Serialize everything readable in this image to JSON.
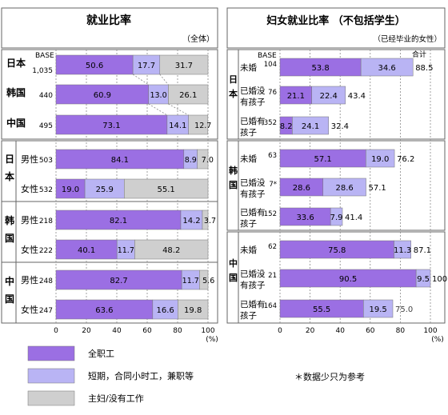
{
  "colors": {
    "full_time": "#9b6fe3",
    "part_time": "#b9b4f4",
    "none": "#cfcfcf",
    "panel_border": "#666666",
    "grid": "#8a8a8a"
  },
  "left_panel": {
    "title": "就业比率",
    "scope_note": "（全体）",
    "base_label": "BASE",
    "axis_ticks": [
      "0",
      "20",
      "40",
      "60",
      "80",
      "100"
    ],
    "unit": "(%)"
  },
  "right_panel": {
    "title": "妇女就业比率 （不包括学生）",
    "scope_note": "（已经毕业的女性）",
    "base_label": "BASE",
    "total_label": "合计",
    "axis_ticks": [
      "0",
      "20",
      "40",
      "60",
      "80",
      "100"
    ],
    "unit": "(%)"
  },
  "legend": [
    {
      "key": "full_time",
      "label": "全职工"
    },
    {
      "key": "part_time",
      "label": "短期，合同小时工，兼职等"
    },
    {
      "key": "none",
      "label": "主妇/没有工作"
    }
  ],
  "footnote": "＊数据少只为参考",
  "chart_data": [
    {
      "type": "bar",
      "stacked": true,
      "orientation": "horizontal",
      "title": "就业比率",
      "subtitle": "（全体）",
      "xlim": [
        0,
        100
      ],
      "xunit": "(%)",
      "series_names": [
        "全职工",
        "短期，合同小时工，兼职等",
        "主妇/没有工作"
      ],
      "rows": [
        {
          "group": "日本",
          "sub": "",
          "base": "1,035",
          "values": [
            50.6,
            17.7,
            31.7
          ]
        },
        {
          "group": "韩国",
          "sub": "",
          "base": "440",
          "values": [
            60.9,
            13.0,
            26.1
          ]
        },
        {
          "group": "中国",
          "sub": "",
          "base": "495",
          "values": [
            73.1,
            14.1,
            12.7
          ]
        },
        {
          "group": "日本",
          "sub": "男性",
          "base": "503",
          "values": [
            84.1,
            8.9,
            7.0
          ]
        },
        {
          "group": "日本",
          "sub": "女性",
          "base": "532",
          "values": [
            19.0,
            25.9,
            55.1
          ]
        },
        {
          "group": "韩国",
          "sub": "男性",
          "base": "218",
          "values": [
            82.1,
            14.2,
            3.7
          ]
        },
        {
          "group": "韩国",
          "sub": "女性",
          "base": "222",
          "values": [
            40.1,
            11.7,
            48.2
          ]
        },
        {
          "group": "中国",
          "sub": "男性",
          "base": "248",
          "values": [
            82.7,
            11.7,
            5.6
          ]
        },
        {
          "group": "中国",
          "sub": "女性",
          "base": "247",
          "values": [
            63.6,
            16.6,
            19.8
          ]
        }
      ]
    },
    {
      "type": "bar",
      "stacked": true,
      "orientation": "horizontal",
      "title": "妇女就业比率 （不包括学生）",
      "subtitle": "（已经毕业的女性）",
      "xlim": [
        0,
        100
      ],
      "xunit": "(%)",
      "series_names": [
        "全职工",
        "短期，合同小时工，兼职等"
      ],
      "rows": [
        {
          "group": "日本",
          "sub": "未婚",
          "base": "104",
          "values": [
            53.8,
            34.6
          ],
          "total": "88.5"
        },
        {
          "group": "日本",
          "sub": "已婚没有孩子",
          "base": "76",
          "values": [
            21.1,
            22.4
          ],
          "total": "43.4"
        },
        {
          "group": "日本",
          "sub": "已婚有孩子",
          "base": "352",
          "values": [
            8.2,
            24.1
          ],
          "total": "32.4"
        },
        {
          "group": "韩国",
          "sub": "未婚",
          "base": "63",
          "values": [
            57.1,
            19.0
          ],
          "total": "76.2"
        },
        {
          "group": "韩国",
          "sub": "已婚没有孩子",
          "base": "7*",
          "values": [
            28.6,
            28.6
          ],
          "total": "57.1"
        },
        {
          "group": "韩国",
          "sub": "已婚有孩子",
          "base": "152",
          "values": [
            33.6,
            7.9
          ],
          "total": "41.4"
        },
        {
          "group": "中国",
          "sub": "未婚",
          "base": "62",
          "values": [
            75.8,
            11.3
          ],
          "total": "87.1"
        },
        {
          "group": "中国",
          "sub": "已婚没有孩子",
          "base": "21",
          "values": [
            90.5,
            9.5
          ],
          "total": "100"
        },
        {
          "group": "中国",
          "sub": "已婚有孩子",
          "base": "164",
          "values": [
            55.5,
            19.5
          ],
          "total": "75.0"
        }
      ]
    }
  ]
}
